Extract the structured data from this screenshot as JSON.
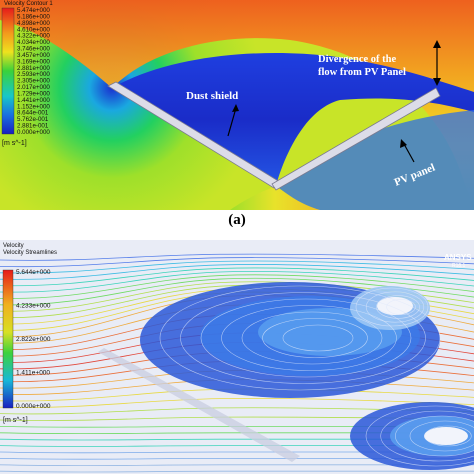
{
  "panel_a": {
    "legend_title": "Velocity Contour 1",
    "legend_ticks": [
      "5.474e+000",
      "5.186e+000",
      "4.898e+000",
      "4.610e+000",
      "4.322e+000",
      "4.034e+000",
      "3.746e+000",
      "3.457e+000",
      "3.169e+000",
      "2.881e+000",
      "2.593e+000",
      "2.305e+000",
      "2.017e+000",
      "1.729e+000",
      "1.441e+000",
      "1.152e+000",
      "8.644e-001",
      "5.762e-001",
      "2.881e-001",
      "0.000e+000"
    ],
    "legend_unit": "[m s^-1]",
    "annotation_dust_shield": "Dust shield",
    "annotation_divergence_line1": "Divergence of the",
    "annotation_divergence_line2": "flow from PV Panel",
    "annotation_pv_panel": "PV panel",
    "caption": "(a)"
  },
  "panel_b": {
    "legend_title_line1": "Velocity",
    "legend_title_line2": "Velocity Streamlines",
    "legend_ticks": [
      "5.644e+000",
      "4.233e+000",
      "2.822e+000",
      "1.411e+000",
      "0.000e+000"
    ],
    "legend_unit": "[m s^-1]",
    "brand": "ANSYS",
    "brand_version": "R18.1"
  },
  "colors": {
    "low": "#1a2cc8",
    "mid": "#22d24a",
    "high": "#e61a1a"
  }
}
